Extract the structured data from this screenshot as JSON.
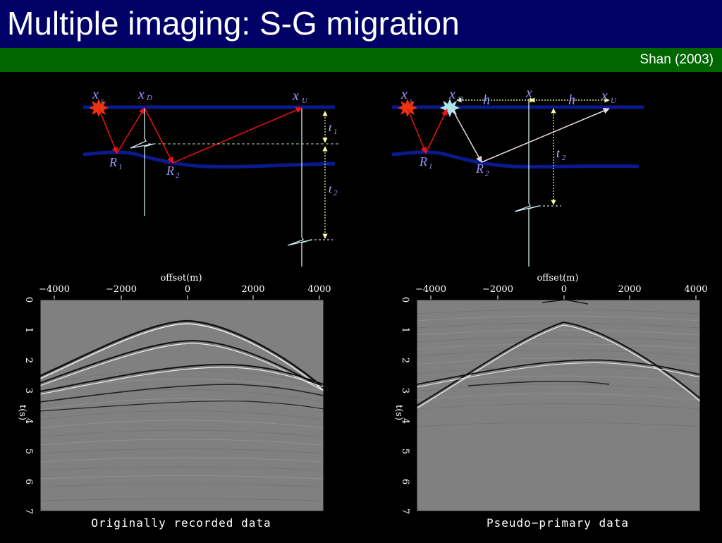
{
  "slide": {
    "title": "Multiple imaging: S-G migration",
    "author": "Shan (2003)"
  },
  "colors": {
    "title_bar": "#000066",
    "subtitle_bar": "#006600",
    "surface_line": "#0a1a8c",
    "reflector": "#0a1a8c",
    "ray_red": "#ee1111",
    "ray_pseudo": "#e8d6e0",
    "trace": "#cfe9ee",
    "timing_arrow": "#ffff99",
    "source_star": "#ee3311",
    "pseudo_star": "#aee4ec"
  },
  "left_diagram": {
    "labels": {
      "source": "x",
      "source_sub": "s",
      "down": "x",
      "down_sub": "D",
      "up": "x",
      "up_sub": "U",
      "r1": "R",
      "r1_sub": "1",
      "r2": "R",
      "r2_sub": "2",
      "t1": "t",
      "t1_sub": "1",
      "t2": "t",
      "t2_sub": "2"
    },
    "icons": [
      "source-star-icon"
    ]
  },
  "right_diagram": {
    "labels": {
      "source": "x",
      "source_sub": "s",
      "down": "x",
      "down_sub": "D",
      "up": "x",
      "up_sub": "U",
      "x": "x",
      "h1": "h",
      "h2": "h",
      "r1": "R",
      "r1_sub": "1",
      "r2": "R",
      "r2_sub": "2",
      "t2": "t",
      "t2_sub": "2"
    },
    "icons": [
      "source-star-icon",
      "pseudo-source-star-icon"
    ]
  },
  "left_panel": {
    "xlabel": "offset(m)",
    "ylabel": "t(s)",
    "x_ticks": [
      "−4000",
      "−2000",
      "0",
      "2000",
      "4000"
    ],
    "y_ticks": [
      "0",
      "1",
      "2",
      "3",
      "4",
      "5",
      "6",
      "7"
    ],
    "caption": "Originally recorded data"
  },
  "right_panel": {
    "xlabel": "offset(m)",
    "ylabel": "t(s)",
    "x_ticks": [
      "−4000",
      "−2000",
      "0",
      "2000",
      "4000"
    ],
    "y_ticks": [
      "0",
      "1",
      "2",
      "3",
      "4",
      "5",
      "6",
      "7"
    ],
    "caption": "Pseudo−primary data"
  }
}
